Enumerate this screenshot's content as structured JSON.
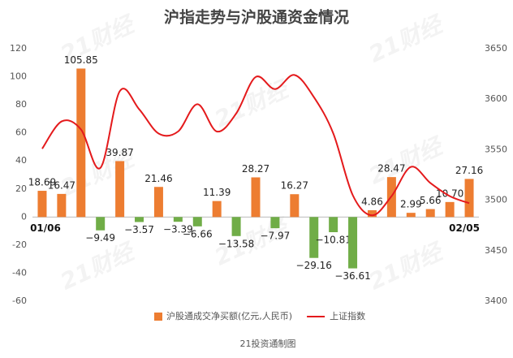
{
  "chart_data": {
    "type": "bar_line",
    "title": "沪指走势与沪股通资金情况",
    "footer": "21投资通制图",
    "watermark": "21财经",
    "categories": [
      "01/06",
      null,
      null,
      null,
      null,
      null,
      null,
      null,
      null,
      null,
      null,
      null,
      null,
      null,
      null,
      null,
      null,
      null,
      null,
      null,
      null,
      null,
      "02/05"
    ],
    "series": [
      {
        "name": "沪股通成交净买额(亿元,人民币)",
        "type": "bar",
        "color": "#ed7d31",
        "negative_color": "#70ad47",
        "values": [
          18.69,
          16.47,
          105.85,
          -9.49,
          39.87,
          -3.57,
          21.46,
          -3.39,
          -6.66,
          11.39,
          -13.58,
          28.27,
          -7.97,
          16.27,
          -29.16,
          -10.81,
          -36.61,
          4.86,
          28.47,
          2.99,
          5.66,
          10.7,
          27.16
        ],
        "value_labels": [
          "18.69",
          "16.47",
          "105.85",
          "−9.49",
          "39.87",
          "−3.57",
          "21.46",
          "−3.39",
          "−6.66",
          "11.39",
          "−13.58",
          "28.27",
          "−7.97",
          "16.27",
          "−29.16",
          "−10.81",
          "−36.61",
          "4.86",
          "28.47",
          "2.99",
          "5.66",
          "10.70",
          "27.16"
        ]
      },
      {
        "name": "上证指数",
        "type": "line",
        "axis": "y2",
        "color": "#e41a1c",
        "values": [
          3551,
          3578,
          3570,
          3532,
          3608,
          3590,
          3566,
          3568,
          3595,
          3568,
          3586,
          3622,
          3610,
          3624,
          3602,
          3566,
          3505,
          3485,
          3504,
          3533,
          3517,
          3504,
          3497
        ]
      }
    ],
    "ylim": [
      -60,
      120
    ],
    "yticks": [
      -60,
      -40,
      -20,
      0,
      20,
      40,
      60,
      80,
      100,
      120
    ],
    "y2lim": [
      3400,
      3650
    ],
    "y2ticks": [
      3400,
      3450,
      3500,
      3550,
      3600,
      3650
    ],
    "grid": false
  }
}
